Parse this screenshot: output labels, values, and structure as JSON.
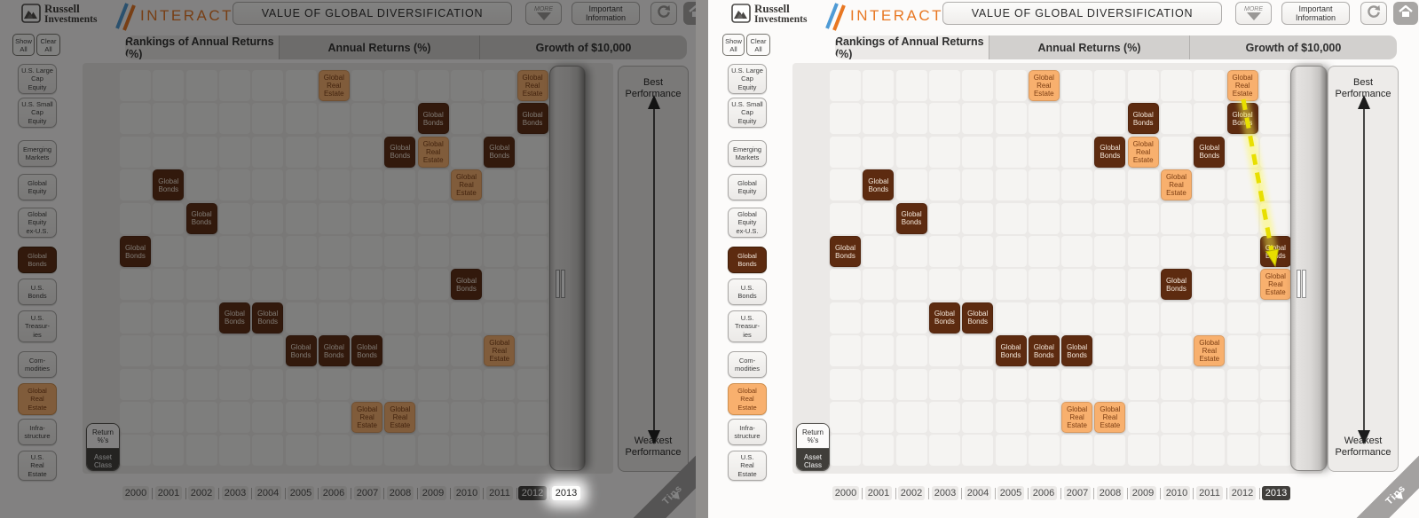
{
  "header": {
    "logo_line1": "Russell",
    "logo_line2": "Investments",
    "brand": "INTERACT",
    "title": "VALUE OF GLOBAL DIVERSIFICATION",
    "more_label": "MORE",
    "important_info": [
      "Important",
      "Information"
    ]
  },
  "tabs": [
    {
      "label": "Rankings of Annual Returns (%)",
      "active": true
    },
    {
      "label": "Annual Returns (%)",
      "active": false
    },
    {
      "label": "Growth of $10,000",
      "active": false
    }
  ],
  "sidebar": {
    "show_all": [
      "Show",
      "All"
    ],
    "clear_all": [
      "Clear",
      "All"
    ],
    "items": [
      {
        "id": "us-large-cap-equity",
        "lines": [
          "U.S. Large",
          "Cap",
          "Equity"
        ],
        "selected": false
      },
      {
        "id": "us-small-cap-equity",
        "lines": [
          "U.S. Small",
          "Cap",
          "Equity"
        ],
        "selected": false
      },
      {
        "id": "emerging-markets",
        "lines": [
          "Emerging",
          "Markets"
        ],
        "selected": false
      },
      {
        "id": "global-equity",
        "lines": [
          "Global",
          "Equity"
        ],
        "selected": false
      },
      {
        "id": "global-equity-ex-us",
        "lines": [
          "Global",
          "Equity",
          "ex-U.S."
        ],
        "selected": false
      },
      {
        "id": "global-bonds",
        "lines": [
          "Global",
          "Bonds"
        ],
        "selected": true,
        "asset": "GB"
      },
      {
        "id": "us-bonds",
        "lines": [
          "U.S.",
          "Bonds"
        ],
        "selected": false
      },
      {
        "id": "us-treasuries",
        "lines": [
          "U.S.",
          "Treasur-",
          "ies"
        ],
        "selected": false
      },
      {
        "id": "commodities",
        "lines": [
          "Com-",
          "modities"
        ],
        "selected": false
      },
      {
        "id": "global-real-estate",
        "lines": [
          "Global",
          "Real",
          "Estate"
        ],
        "selected": true,
        "asset": "GRE"
      },
      {
        "id": "infrastructure",
        "lines": [
          "Infra-",
          "structure"
        ],
        "selected": false
      },
      {
        "id": "us-real-estate",
        "lines": [
          "U.S.",
          "Real",
          "Estate"
        ],
        "selected": false
      }
    ]
  },
  "toggle": {
    "top": [
      "Return",
      "%'s"
    ],
    "bottom": [
      "Asset",
      "Class"
    ]
  },
  "years": [
    "2000",
    "2001",
    "2002",
    "2003",
    "2004",
    "2005",
    "2006",
    "2007",
    "2008",
    "2009",
    "2010",
    "2011",
    "2012",
    "2013"
  ],
  "axis": {
    "best": "Best Performance",
    "weakest": "Weakest Performance"
  },
  "tips": "Tips",
  "assets": {
    "GB": {
      "name": "Global Bonds",
      "lines": [
        "Global",
        "Bonds"
      ],
      "color": "#5d2b10",
      "text_color": "#f4e7da"
    },
    "GRE": {
      "name": "Global Real Estate",
      "lines": [
        "Global",
        "Real",
        "Estate"
      ],
      "color": "#f8b06e",
      "text_color": "#7c3d12"
    }
  },
  "chart_data": {
    "type": "table",
    "title": "Rankings of Annual Returns (%)",
    "subtitle": "Asset-class ranking grid; row = rank (1 = best of 12), column = year",
    "years": [
      2000,
      2001,
      2002,
      2003,
      2004,
      2005,
      2006,
      2007,
      2008,
      2009,
      2010,
      2011,
      2012,
      2013
    ],
    "num_rank_rows": 12,
    "series": [
      {
        "name": "Global Bonds",
        "asset": "GB",
        "ranks": [
          6,
          4,
          5,
          8,
          8,
          9,
          9,
          9,
          3,
          2,
          7,
          3,
          2,
          6
        ]
      },
      {
        "name": "Global Real Estate",
        "asset": "GRE",
        "ranks": [
          null,
          null,
          null,
          null,
          null,
          null,
          1,
          11,
          11,
          3,
          4,
          9,
          1,
          7
        ]
      }
    ],
    "legend_position": "left-sidebar",
    "annotation": "Dashed yellow arrow shows Global Real Estate / Global Bonds dropping from ranks 1-2 in 2012 to ranks 6-7 in 2013"
  },
  "panels": [
    {
      "id": "before",
      "dimmed": true,
      "selected_year": "2012",
      "spotlight_year": "2013",
      "reveal_2013": false,
      "show_move_arrow": false
    },
    {
      "id": "after",
      "dimmed": false,
      "selected_year": "2013",
      "spotlight_year": null,
      "reveal_2013": true,
      "show_move_arrow": true
    }
  ],
  "colors": {
    "brand_orange": "#e87722",
    "slash_blue": "#4f9bd5",
    "global_bonds": "#5d2b10",
    "global_real_estate": "#f8b06e",
    "selected_year_bg": "#413f3c",
    "chart_bg": "#ebe9e7",
    "arrow_yellow": "#e8df00"
  }
}
